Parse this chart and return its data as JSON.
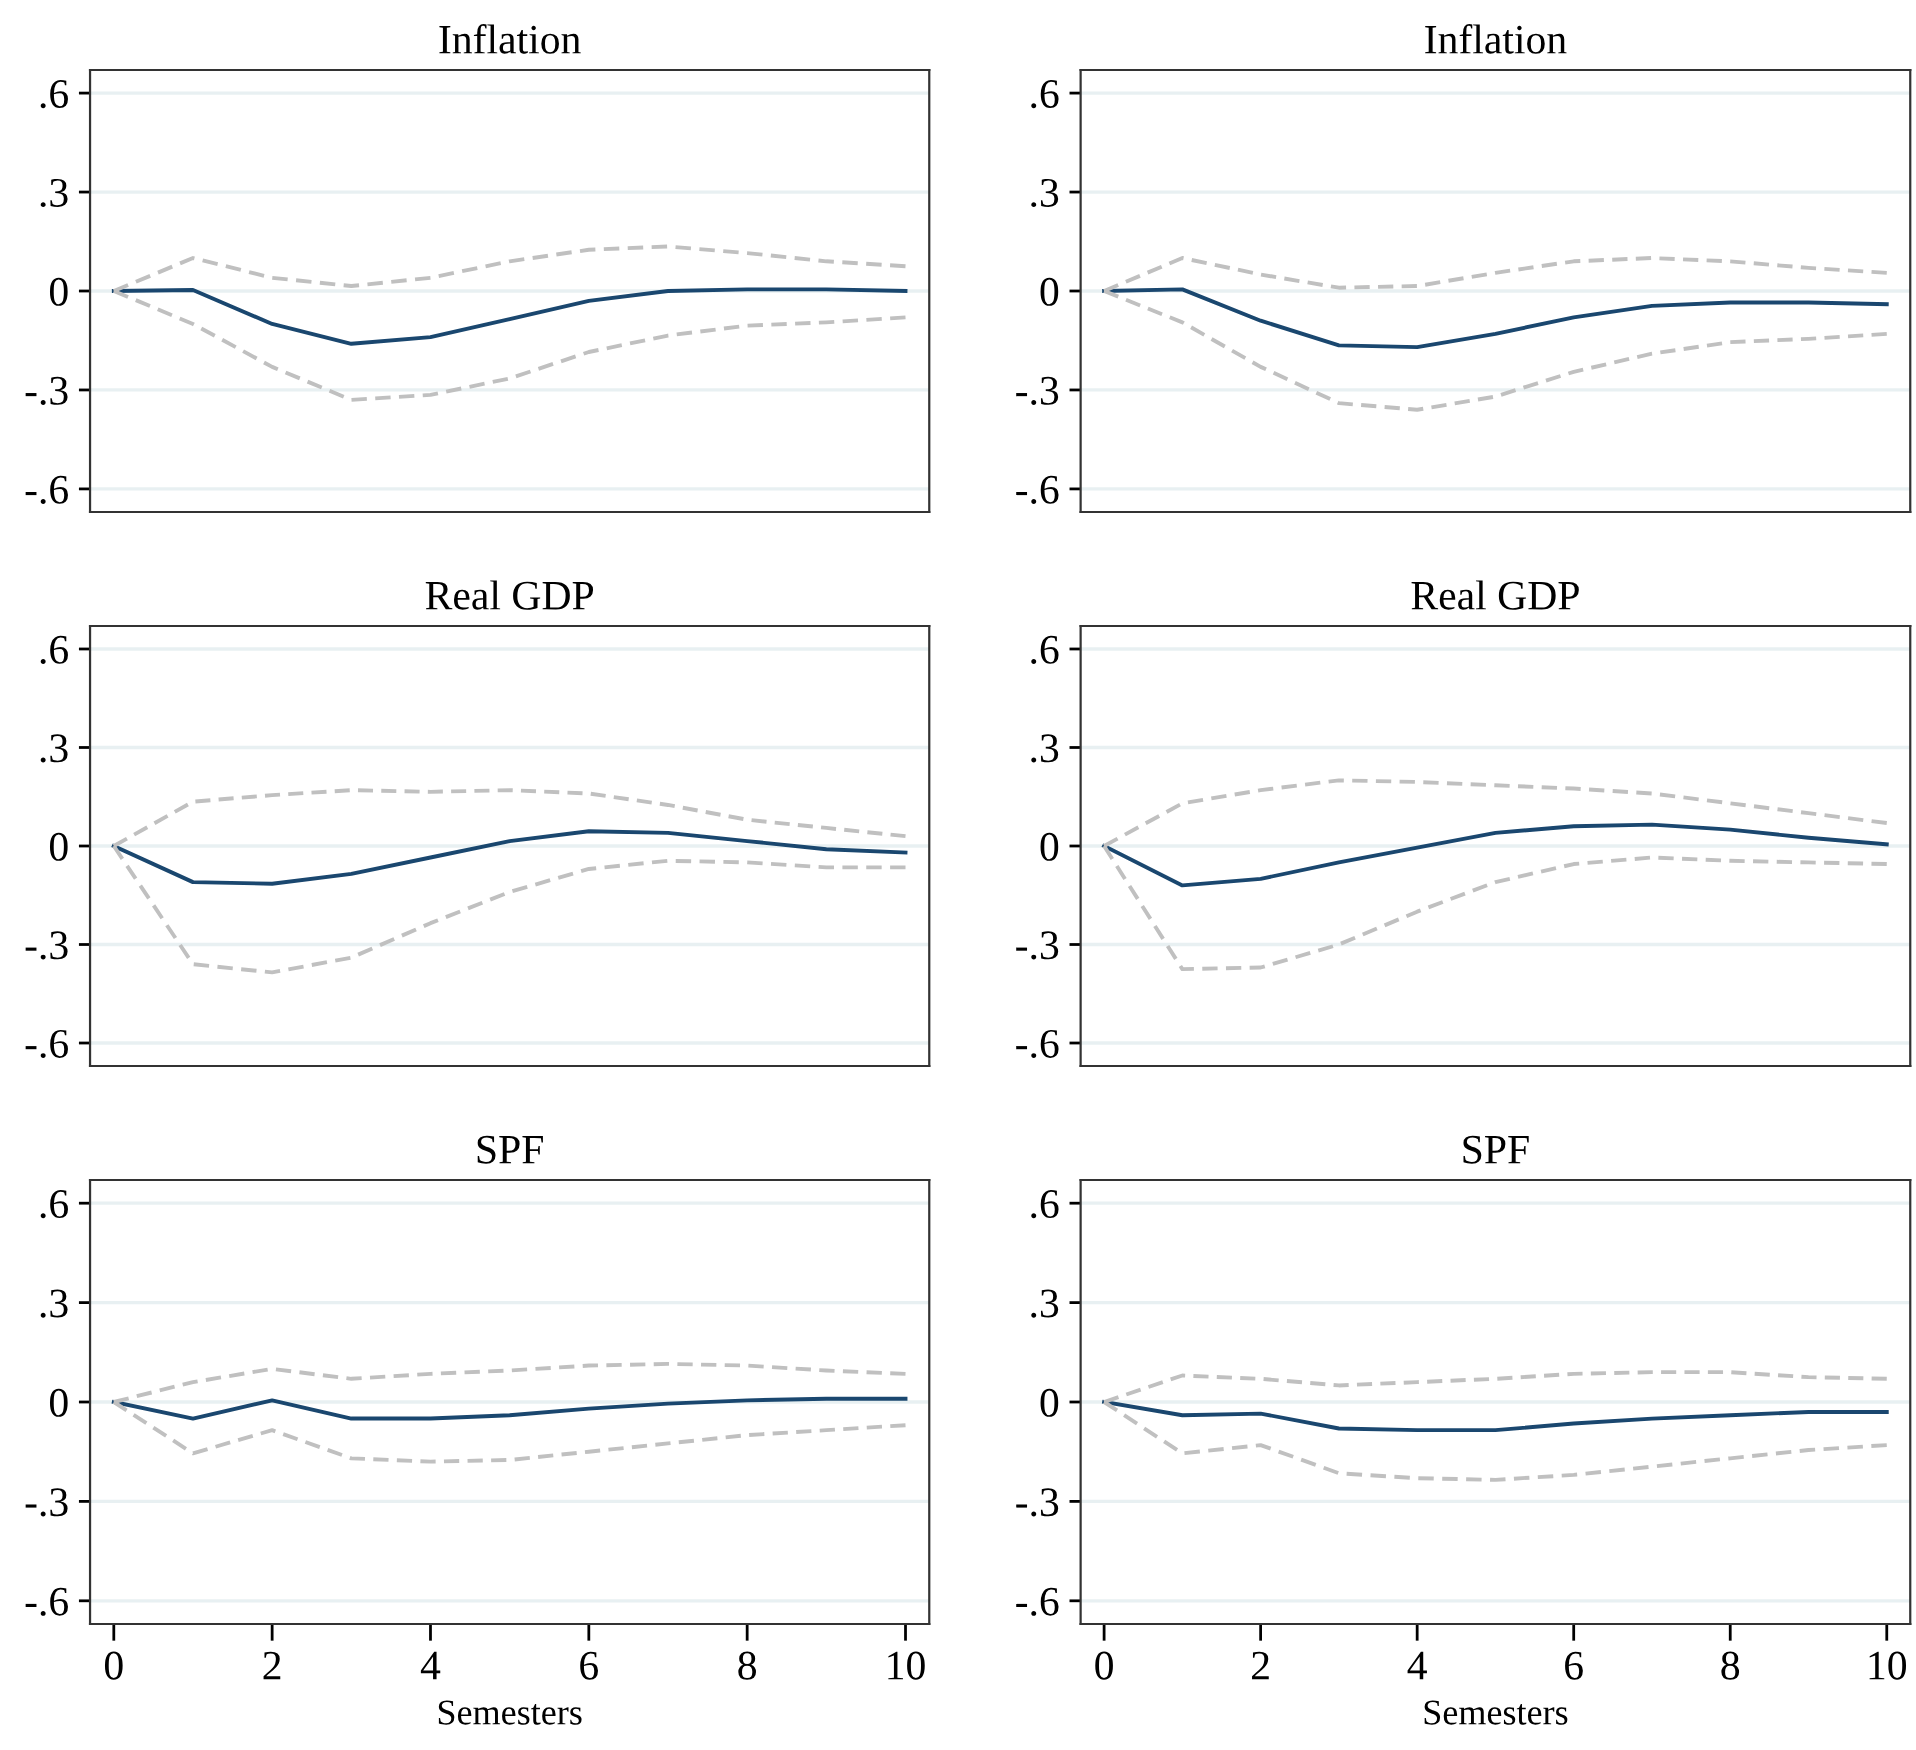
{
  "chart_data": [
    {
      "type": "line",
      "title": "Inflation",
      "x": [
        0,
        1,
        2,
        3,
        4,
        5,
        6,
        7,
        8,
        9,
        10
      ],
      "xlim": [
        -0.3,
        10.3
      ],
      "ylim": [
        -0.67,
        0.67
      ],
      "yticks": [
        {
          "value": 0.6,
          "label": ".6"
        },
        {
          "value": 0.3,
          "label": ".3"
        },
        0,
        {
          "value": -0.3,
          "label": "-.3"
        },
        {
          "value": -0.6,
          "label": "-.6"
        }
      ],
      "grid": "y",
      "tick_labels": "y",
      "series": [
        {
          "color": "#1a476f",
          "line_style": "solid",
          "values": [
            0,
            0.003,
            -0.1,
            -0.16,
            -0.14,
            -0.085,
            -0.03,
            0,
            0.005,
            0.005,
            0
          ]
        },
        {
          "color": "#c0c0c0",
          "line_style": "dashed",
          "values": [
            0,
            0.1,
            0.04,
            0.015,
            0.04,
            0.09,
            0.125,
            0.135,
            0.115,
            0.09,
            0.075
          ]
        },
        {
          "color": "#c0c0c0",
          "line_style": "dashed",
          "values": [
            0,
            -0.1,
            -0.23,
            -0.33,
            -0.315,
            -0.265,
            -0.185,
            -0.135,
            -0.105,
            -0.095,
            -0.08
          ]
        }
      ]
    },
    {
      "type": "line",
      "title": "Inflation",
      "x": [
        0,
        1,
        2,
        3,
        4,
        5,
        6,
        7,
        8,
        9,
        10
      ],
      "xlim": [
        -0.3,
        10.3
      ],
      "ylim": [
        -0.67,
        0.67
      ],
      "yticks": [
        {
          "value": 0.6,
          "label": ".6"
        },
        {
          "value": 0.3,
          "label": ".3"
        },
        0,
        {
          "value": -0.3,
          "label": "-.3"
        },
        {
          "value": -0.6,
          "label": "-.6"
        }
      ],
      "grid": "y",
      "tick_labels": "y",
      "series": [
        {
          "color": "#1a476f",
          "line_style": "solid",
          "values": [
            0,
            0.005,
            -0.09,
            -0.165,
            -0.17,
            -0.13,
            -0.08,
            -0.045,
            -0.035,
            -0.035,
            -0.04
          ]
        },
        {
          "color": "#c0c0c0",
          "line_style": "dashed",
          "values": [
            0,
            0.1,
            0.05,
            0.01,
            0.015,
            0.055,
            0.09,
            0.1,
            0.09,
            0.07,
            0.055
          ]
        },
        {
          "color": "#c0c0c0",
          "line_style": "dashed",
          "values": [
            0,
            -0.095,
            -0.23,
            -0.34,
            -0.36,
            -0.32,
            -0.245,
            -0.19,
            -0.155,
            -0.145,
            -0.13
          ]
        }
      ]
    },
    {
      "type": "line",
      "title": "Real GDP",
      "x": [
        0,
        1,
        2,
        3,
        4,
        5,
        6,
        7,
        8,
        9,
        10
      ],
      "xlim": [
        -0.3,
        10.3
      ],
      "ylim": [
        -0.67,
        0.67
      ],
      "yticks": [
        {
          "value": 0.6,
          "label": ".6"
        },
        {
          "value": 0.3,
          "label": ".3"
        },
        0,
        {
          "value": -0.3,
          "label": "-.3"
        },
        {
          "value": -0.6,
          "label": "-.6"
        }
      ],
      "grid": "y",
      "tick_labels": "y",
      "series": [
        {
          "color": "#1a476f",
          "line_style": "solid",
          "values": [
            0,
            -0.11,
            -0.115,
            -0.085,
            -0.035,
            0.015,
            0.045,
            0.04,
            0.015,
            -0.01,
            -0.02
          ]
        },
        {
          "color": "#c0c0c0",
          "line_style": "dashed",
          "values": [
            0,
            0.135,
            0.155,
            0.17,
            0.165,
            0.17,
            0.16,
            0.125,
            0.08,
            0.055,
            0.03
          ]
        },
        {
          "color": "#c0c0c0",
          "line_style": "dashed",
          "values": [
            0,
            -0.36,
            -0.385,
            -0.34,
            -0.235,
            -0.14,
            -0.07,
            -0.045,
            -0.05,
            -0.065,
            -0.065
          ]
        }
      ]
    },
    {
      "type": "line",
      "title": "Real GDP",
      "x": [
        0,
        1,
        2,
        3,
        4,
        5,
        6,
        7,
        8,
        9,
        10
      ],
      "xlim": [
        -0.3,
        10.3
      ],
      "ylim": [
        -0.67,
        0.67
      ],
      "yticks": [
        {
          "value": 0.6,
          "label": ".6"
        },
        {
          "value": 0.3,
          "label": ".3"
        },
        0,
        {
          "value": -0.3,
          "label": "-.3"
        },
        {
          "value": -0.6,
          "label": "-.6"
        }
      ],
      "grid": "y",
      "tick_labels": "y",
      "series": [
        {
          "color": "#1a476f",
          "line_style": "solid",
          "values": [
            0,
            -0.12,
            -0.1,
            -0.05,
            -0.005,
            0.04,
            0.06,
            0.065,
            0.05,
            0.025,
            0.005
          ]
        },
        {
          "color": "#c0c0c0",
          "line_style": "dashed",
          "values": [
            0,
            0.13,
            0.17,
            0.2,
            0.195,
            0.185,
            0.175,
            0.16,
            0.13,
            0.1,
            0.07
          ]
        },
        {
          "color": "#c0c0c0",
          "line_style": "dashed",
          "values": [
            0,
            -0.375,
            -0.37,
            -0.3,
            -0.2,
            -0.11,
            -0.055,
            -0.035,
            -0.045,
            -0.05,
            -0.055
          ]
        }
      ]
    },
    {
      "type": "line",
      "title": "SPF",
      "xlabel": "Semesters",
      "x": [
        0,
        1,
        2,
        3,
        4,
        5,
        6,
        7,
        8,
        9,
        10
      ],
      "xlim": [
        -0.3,
        10.3
      ],
      "ylim": [
        -0.67,
        0.67
      ],
      "xticks": [
        0,
        2,
        4,
        6,
        8,
        10
      ],
      "yticks": [
        {
          "value": 0.6,
          "label": ".6"
        },
        {
          "value": 0.3,
          "label": ".3"
        },
        0,
        {
          "value": -0.3,
          "label": "-.3"
        },
        {
          "value": -0.6,
          "label": "-.6"
        }
      ],
      "grid": "y",
      "series": [
        {
          "color": "#1a476f",
          "line_style": "solid",
          "values": [
            0,
            -0.05,
            0.005,
            -0.05,
            -0.05,
            -0.04,
            -0.02,
            -0.005,
            0.005,
            0.01,
            0.01
          ]
        },
        {
          "color": "#c0c0c0",
          "line_style": "dashed",
          "values": [
            0,
            0.06,
            0.1,
            0.07,
            0.085,
            0.095,
            0.11,
            0.115,
            0.11,
            0.095,
            0.085
          ]
        },
        {
          "color": "#c0c0c0",
          "line_style": "dashed",
          "values": [
            0,
            -0.155,
            -0.085,
            -0.17,
            -0.18,
            -0.175,
            -0.15,
            -0.125,
            -0.1,
            -0.085,
            -0.07
          ]
        }
      ]
    },
    {
      "type": "line",
      "title": "SPF",
      "xlabel": "Semesters",
      "x": [
        0,
        1,
        2,
        3,
        4,
        5,
        6,
        7,
        8,
        9,
        10
      ],
      "xlim": [
        -0.3,
        10.3
      ],
      "ylim": [
        -0.67,
        0.67
      ],
      "xticks": [
        0,
        2,
        4,
        6,
        8,
        10
      ],
      "yticks": [
        {
          "value": 0.6,
          "label": ".6"
        },
        {
          "value": 0.3,
          "label": ".3"
        },
        0,
        {
          "value": -0.3,
          "label": "-.3"
        },
        {
          "value": -0.6,
          "label": "-.6"
        }
      ],
      "grid": "y",
      "series": [
        {
          "color": "#1a476f",
          "line_style": "solid",
          "values": [
            0,
            -0.04,
            -0.035,
            -0.08,
            -0.085,
            -0.085,
            -0.065,
            -0.05,
            -0.04,
            -0.03,
            -0.03
          ]
        },
        {
          "color": "#c0c0c0",
          "line_style": "dashed",
          "values": [
            0,
            0.08,
            0.07,
            0.05,
            0.06,
            0.07,
            0.085,
            0.09,
            0.09,
            0.075,
            0.07
          ]
        },
        {
          "color": "#c0c0c0",
          "line_style": "dashed",
          "values": [
            0,
            -0.155,
            -0.13,
            -0.215,
            -0.23,
            -0.235,
            -0.22,
            -0.195,
            -0.17,
            -0.145,
            -0.13
          ]
        }
      ]
    }
  ]
}
